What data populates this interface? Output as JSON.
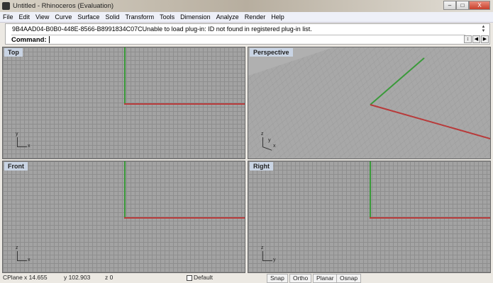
{
  "window": {
    "title": "Untitled - Rhinoceros (Evaluation)",
    "minimize": "–",
    "maximize": "□",
    "close": "X"
  },
  "menu": [
    "File",
    "Edit",
    "View",
    "Curve",
    "Surface",
    "Solid",
    "Transform",
    "Tools",
    "Dimension",
    "Analyze",
    "Render",
    "Help"
  ],
  "command": {
    "history": "9B4AAD04-B0B0-448E-8566-B8991834C07CUnable to load plug-in: ID not found in registered plug-in list.",
    "prompt": "Command:"
  },
  "viewports": [
    {
      "label": "Top",
      "axes": [
        "y",
        "x"
      ]
    },
    {
      "label": "Perspective",
      "axes": [
        "z",
        "y",
        "x"
      ]
    },
    {
      "label": "Front",
      "axes": [
        "z",
        "x"
      ]
    },
    {
      "label": "Right",
      "axes": [
        "z",
        "y"
      ]
    }
  ],
  "status": {
    "cplane": "CPlane",
    "x": "x 14.655",
    "y": "y 102.903",
    "z": "z 0",
    "layer": "Default",
    "snap": "Snap",
    "ortho": "Ortho",
    "planar": "Planar",
    "osnap": "Osnap"
  },
  "colors": {
    "x_axis": "#b83a3a",
    "y_axis": "#3a9a3a",
    "grid_bg": "#a3a3a3"
  }
}
